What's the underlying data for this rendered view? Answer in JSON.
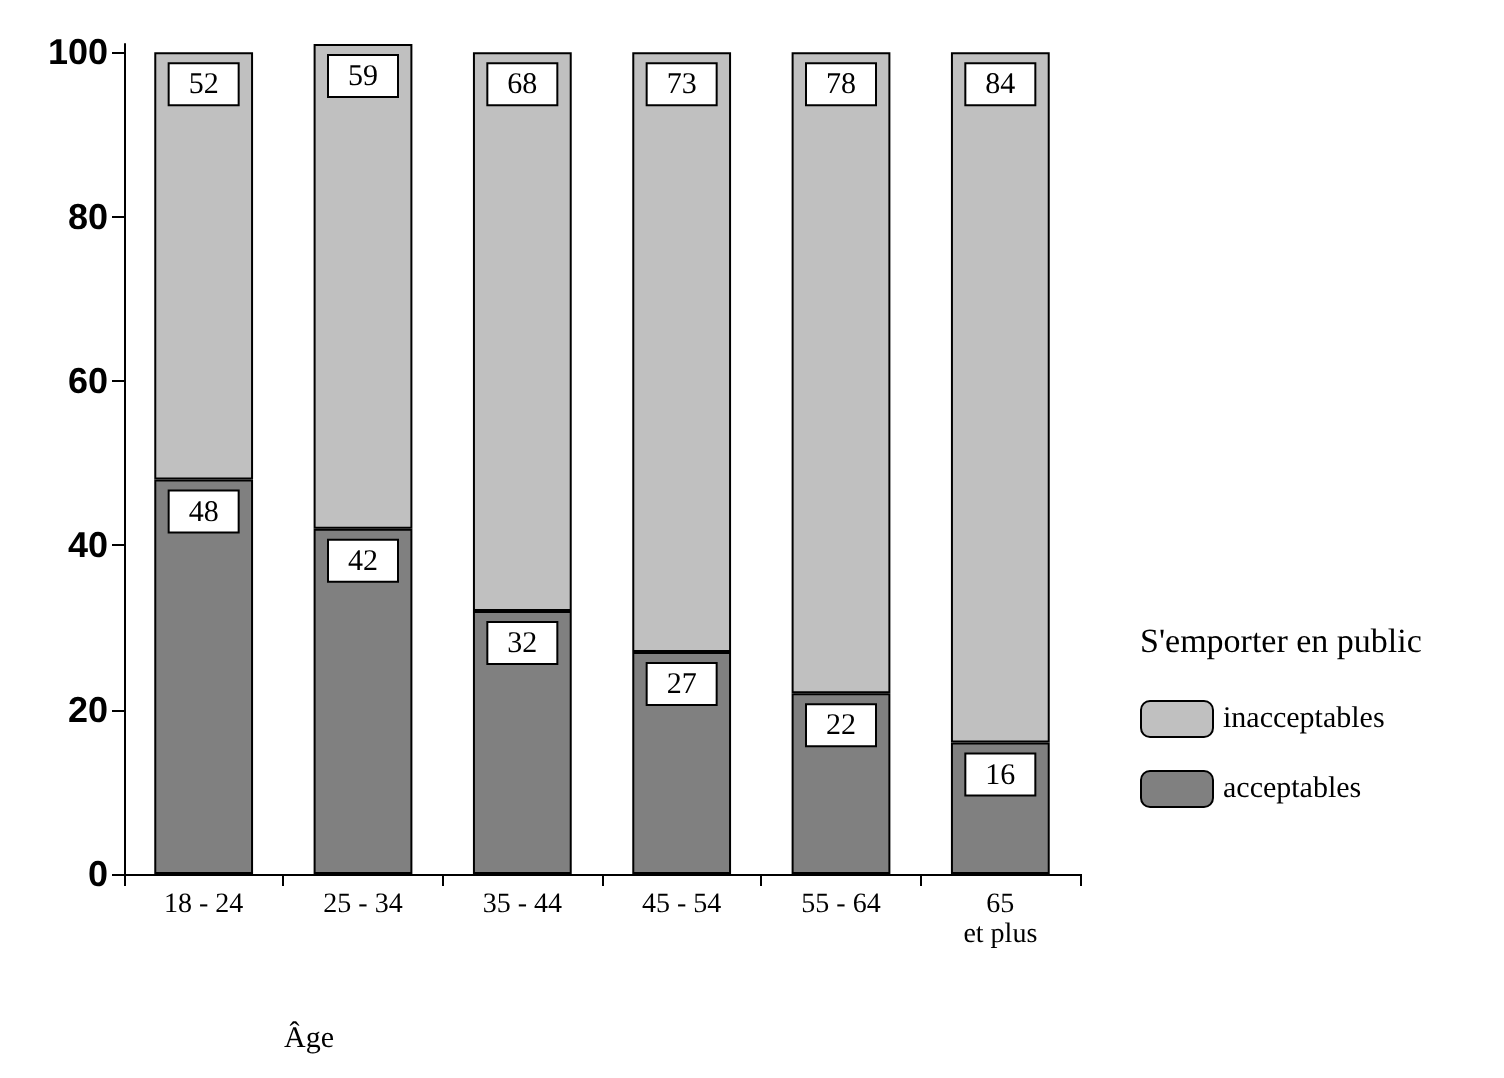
{
  "chart_data": {
    "type": "bar",
    "stacked": true,
    "xlabel": "Âge",
    "legend_title": "S'emporter en public",
    "legend": "right",
    "categories": [
      "18 - 24",
      "25 - 34",
      "35 - 44",
      "45 - 54",
      "55 - 64",
      "65\net plus"
    ],
    "series": [
      {
        "name": "acceptables",
        "color": "#808080",
        "values": [
          48,
          42,
          32,
          27,
          22,
          16
        ]
      },
      {
        "name": "inacceptables",
        "color": "#c0c0c0",
        "values": [
          52,
          59,
          68,
          73,
          78,
          84
        ]
      }
    ],
    "ylim": [
      0,
      101
    ],
    "yticks": [
      0,
      20,
      40,
      60,
      80,
      100
    ],
    "grid": false,
    "data_labels": true
  }
}
